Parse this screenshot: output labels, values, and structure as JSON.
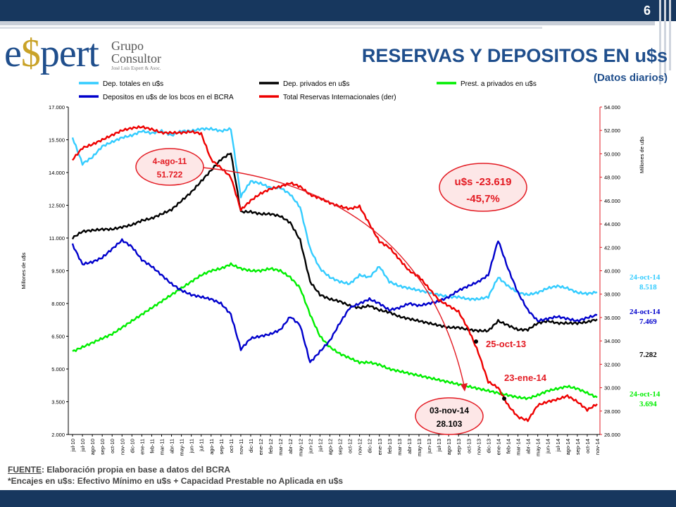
{
  "header": {
    "page_number": "6",
    "title": "RESERVAS Y DEPOSITOS EN u$s",
    "subtitle": "(Datos diarios)"
  },
  "logo": {
    "brand_pre": "e",
    "brand_dollar": "$",
    "brand_post": "pert",
    "line1": "Grupo",
    "line2": "Consultor",
    "line3": "José Luis Espert & Asoc."
  },
  "footer": {
    "source_label": "FUENTE",
    "source_text": ": Elaboración propia en base a datos del BCRA",
    "note": "*Encajes en u$s: Efectivo Mínimo en u$s + Capacidad Prestable no Aplicada en u$s"
  },
  "colors": {
    "light_blue": "#33ccff",
    "black": "#000000",
    "green": "#00ee00",
    "blue": "#0000cc",
    "red": "#ee0000",
    "navy": "#17375e",
    "annotation_red": "#e31b23"
  },
  "chart_data": {
    "type": "line",
    "ylabel": "Millones de u$s",
    "y2label": "Millones de u$s",
    "ylim": [
      2000,
      17000
    ],
    "y2lim": [
      26000,
      54000
    ],
    "yticks": [
      "2.000",
      "3.500",
      "5.000",
      "6.500",
      "8.000",
      "9.500",
      "11.000",
      "12.500",
      "14.000",
      "15.500",
      "17.000"
    ],
    "y2ticks": [
      "26.000",
      "28.000",
      "30.000",
      "32.000",
      "34.000",
      "36.000",
      "38.000",
      "40.000",
      "42.000",
      "44.000",
      "46.000",
      "48.000",
      "50.000",
      "52.000",
      "54.000"
    ],
    "x_categories": [
      "jul-10",
      "jul-10",
      "ago-10",
      "sep-10",
      "oct-10",
      "nov-10",
      "dic-10",
      "ene-11",
      "feb-11",
      "mar-11",
      "abr-11",
      "may-11",
      "jun-11",
      "jul-11",
      "ago-11",
      "sep-11",
      "oct-11",
      "nov-11",
      "dic-11",
      "ene-12",
      "feb-12",
      "mar-12",
      "abr-12",
      "may-12",
      "jun-12",
      "jul-12",
      "ago-12",
      "sep-12",
      "oct-12",
      "nov-12",
      "dic-12",
      "ene-13",
      "feb-13",
      "mar-13",
      "abr-13",
      "may-13",
      "jun-13",
      "jul-13",
      "ago-13",
      "sep-13",
      "oct-13",
      "nov-13",
      "dic-13",
      "ene-14",
      "feb-14",
      "mar-14",
      "abr-14",
      "may-14",
      "jun-14",
      "jul-14",
      "ago-14",
      "sep-14",
      "oct-14",
      "nov-14"
    ],
    "grid": false,
    "legend_position": "top",
    "series": [
      {
        "name": "Dep. totales en u$s",
        "axis": "left",
        "color": "#33ccff",
        "values": [
          15600,
          14400,
          14700,
          15200,
          15400,
          15600,
          15700,
          15900,
          15800,
          15900,
          15700,
          15900,
          15900,
          16000,
          16000,
          15900,
          16000,
          12900,
          13600,
          13500,
          13300,
          13300,
          13000,
          12400,
          10500,
          9600,
          9200,
          9000,
          8900,
          9300,
          9200,
          9700,
          9000,
          8800,
          8700,
          8600,
          8500,
          8400,
          8300,
          8300,
          8200,
          8200,
          8300,
          9200,
          8800,
          8500,
          8400,
          8500,
          8700,
          8800,
          8700,
          8500,
          8450,
          8518
        ]
      },
      {
        "name": "Dep. privados en u$s",
        "axis": "left",
        "color": "#000000",
        "values": [
          11000,
          11300,
          11350,
          11400,
          11400,
          11500,
          11600,
          11800,
          11900,
          12100,
          12300,
          12700,
          13100,
          13600,
          14100,
          14600,
          14900,
          12200,
          12200,
          12100,
          12100,
          12000,
          11700,
          10900,
          9000,
          8400,
          8200,
          8100,
          7900,
          7800,
          7900,
          7700,
          7600,
          7400,
          7300,
          7200,
          7100,
          7000,
          6900,
          6900,
          6800,
          6750,
          6750,
          7200,
          7000,
          6800,
          6800,
          7100,
          7200,
          7100,
          7100,
          7100,
          7150,
          7282
        ]
      },
      {
        "name": "Prest. a privados en u$s",
        "axis": "left",
        "color": "#00ee00",
        "values": [
          5800,
          6000,
          6200,
          6400,
          6600,
          6900,
          7200,
          7500,
          7800,
          8100,
          8400,
          8700,
          9000,
          9300,
          9500,
          9600,
          9800,
          9600,
          9500,
          9500,
          9600,
          9500,
          9200,
          8700,
          7500,
          6500,
          6000,
          5700,
          5500,
          5300,
          5300,
          5200,
          5000,
          4900,
          4800,
          4700,
          4600,
          4500,
          4400,
          4300,
          4200,
          4100,
          4000,
          3900,
          3800,
          3700,
          3650,
          3800,
          4000,
          4100,
          4200,
          4100,
          3900,
          3694
        ]
      },
      {
        "name": "Depositos en u$s de los bcos en el BCRA",
        "axis": "left",
        "color": "#0000cc",
        "values": [
          10700,
          9800,
          9900,
          10100,
          10500,
          10900,
          10600,
          10000,
          9700,
          9300,
          8900,
          8600,
          8400,
          8300,
          8200,
          8000,
          7500,
          5900,
          6400,
          6500,
          6600,
          6800,
          7400,
          7000,
          5300,
          5800,
          6300,
          7100,
          7800,
          8000,
          8200,
          8000,
          7700,
          7800,
          8000,
          7900,
          8000,
          8100,
          8300,
          8600,
          8800,
          9000,
          9300,
          10900,
          9600,
          8500,
          7700,
          7200,
          7300,
          7400,
          7300,
          7200,
          7350,
          7469
        ]
      },
      {
        "name": "Total Reservas Internacionales (der)",
        "axis": "right",
        "color": "#ee0000",
        "values": [
          49500,
          50500,
          50800,
          51200,
          51600,
          52000,
          52200,
          52300,
          52100,
          51800,
          51800,
          51800,
          51900,
          51722,
          49500,
          48800,
          48000,
          45200,
          46000,
          46600,
          47000,
          47200,
          47500,
          47200,
          46500,
          46200,
          45800,
          45500,
          45300,
          45500,
          44000,
          42500,
          42000,
          41000,
          40000,
          39500,
          38500,
          37500,
          37000,
          36500,
          35000,
          33000,
          30500,
          30000,
          28500,
          27500,
          27200,
          28500,
          28800,
          29000,
          29300,
          28800,
          28103,
          28600
        ]
      }
    ],
    "annotations": {
      "peak_label_date": "4-ago-11",
      "peak_label_value": "51.722",
      "trough_label_date": "03-nov-14",
      "trough_label_value": "28.103",
      "change_amount": "u$s -23.619",
      "change_pct": "-45,7%",
      "mid_label_1": "25-oct-13",
      "mid_label_2": "23-ene-14",
      "end_labels": [
        {
          "date": "24-oct-14",
          "value": "8.518",
          "color": "#33ccff"
        },
        {
          "date": "24-oct-14",
          "value": "7.469",
          "color": "#0000cc"
        },
        {
          "date": "",
          "value": "7.282",
          "color": "#000000"
        },
        {
          "date": "24-oct-14",
          "value": "3.694",
          "color": "#00ee00"
        }
      ]
    }
  }
}
